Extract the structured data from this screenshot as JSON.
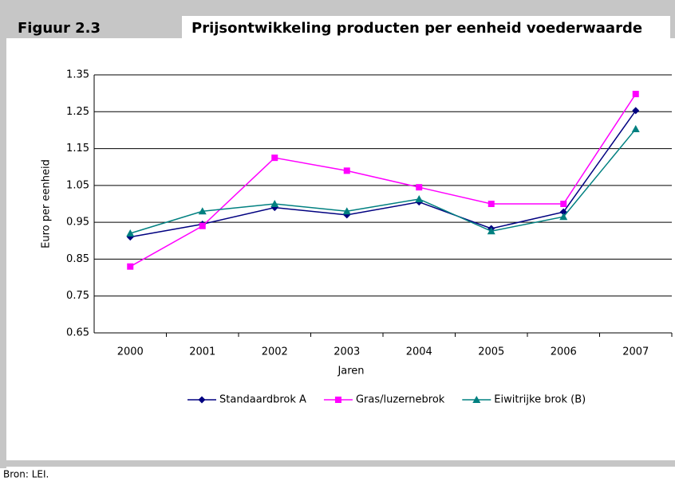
{
  "header": {
    "figure": "Figuur 2.3",
    "title": "Prijsontwikkeling producten per eenheid voederwaarde"
  },
  "chart_data": {
    "type": "line",
    "x_label": "Jaren",
    "y_label": "Euro per eenheid",
    "categories": [
      "2000",
      "2001",
      "2002",
      "2003",
      "2004",
      "2005",
      "2006",
      "2007"
    ],
    "series": [
      {
        "name": "Standaardbrok A",
        "color": "#000080",
        "marker": "diamond",
        "values": [
          0.91,
          0.945,
          0.99,
          0.97,
          1.005,
          0.933,
          0.978,
          1.253
        ]
      },
      {
        "name": "Gras/luzernebrok",
        "color": "#ff00ff",
        "marker": "square",
        "values": [
          0.83,
          0.94,
          1.125,
          1.09,
          1.045,
          1.0,
          1.0,
          1.298
        ]
      },
      {
        "name": "Eiwitrijke brok (B)",
        "color": "#008080",
        "marker": "triangle",
        "values": [
          0.92,
          0.98,
          1.0,
          0.98,
          1.013,
          0.926,
          0.965,
          1.203
        ]
      }
    ],
    "ylim": [
      0.65,
      1.35
    ],
    "yticks": [
      0.65,
      0.75,
      0.85,
      0.95,
      1.05,
      1.15,
      1.25,
      1.35
    ],
    "grid": true,
    "legend": "bottom"
  },
  "footer": {
    "source": "Bron: LEI."
  }
}
